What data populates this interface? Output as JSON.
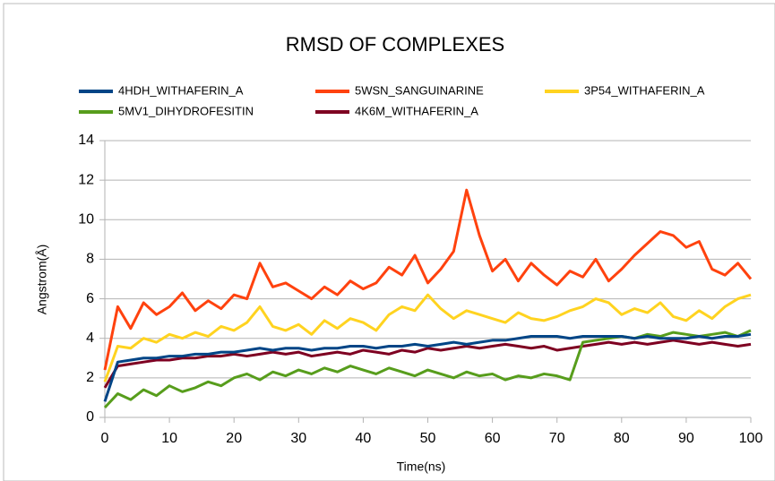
{
  "chart_data": {
    "type": "line",
    "title": "RMSD OF COMPLEXES",
    "x_label": "Time(ns)",
    "y_label": "Angstrom(Å)",
    "x": [
      0,
      2,
      4,
      6,
      8,
      10,
      12,
      14,
      16,
      18,
      20,
      22,
      24,
      26,
      28,
      30,
      32,
      34,
      36,
      38,
      40,
      42,
      44,
      46,
      48,
      50,
      52,
      54,
      56,
      58,
      60,
      62,
      64,
      66,
      68,
      70,
      72,
      74,
      76,
      78,
      80,
      82,
      84,
      86,
      88,
      90,
      92,
      94,
      96,
      98,
      100
    ],
    "series": [
      {
        "name": "4HDH_WITHAFERIN_A",
        "color": "#004586",
        "values": [
          0.8,
          2.8,
          2.9,
          3.0,
          3.0,
          3.1,
          3.1,
          3.2,
          3.2,
          3.3,
          3.3,
          3.4,
          3.5,
          3.4,
          3.5,
          3.5,
          3.4,
          3.5,
          3.5,
          3.6,
          3.6,
          3.5,
          3.6,
          3.6,
          3.7,
          3.6,
          3.7,
          3.8,
          3.7,
          3.8,
          3.9,
          3.9,
          4.0,
          4.1,
          4.1,
          4.1,
          4.0,
          4.1,
          4.1,
          4.1,
          4.1,
          4.0,
          4.1,
          4.0,
          4.0,
          4.0,
          4.1,
          4.0,
          4.1,
          4.1,
          4.2
        ]
      },
      {
        "name": "5WSN_SANGUINARINE",
        "color": "#ff420e",
        "values": [
          2.4,
          5.6,
          4.5,
          5.8,
          5.2,
          5.6,
          6.3,
          5.4,
          5.9,
          5.5,
          6.2,
          6.0,
          7.8,
          6.6,
          6.8,
          6.4,
          6.0,
          6.6,
          6.2,
          6.9,
          6.5,
          6.8,
          7.6,
          7.2,
          8.2,
          6.8,
          7.5,
          8.4,
          11.5,
          9.2,
          7.4,
          8.0,
          6.9,
          7.8,
          7.2,
          6.7,
          7.4,
          7.1,
          8.0,
          6.9,
          7.5,
          8.2,
          8.8,
          9.4,
          9.2,
          8.6,
          8.9,
          7.5,
          7.2,
          7.8,
          7.0
        ]
      },
      {
        "name": "3P54_WITHAFERIN_A",
        "color": "#ffd320",
        "values": [
          1.8,
          3.6,
          3.5,
          4.0,
          3.8,
          4.2,
          4.0,
          4.3,
          4.1,
          4.6,
          4.4,
          4.8,
          5.6,
          4.6,
          4.4,
          4.7,
          4.2,
          4.9,
          4.5,
          5.0,
          4.8,
          4.4,
          5.2,
          5.6,
          5.4,
          6.2,
          5.5,
          5.0,
          5.4,
          5.2,
          5.0,
          4.8,
          5.3,
          5.0,
          4.9,
          5.1,
          5.4,
          5.6,
          6.0,
          5.8,
          5.2,
          5.5,
          5.3,
          5.8,
          5.1,
          4.9,
          5.4,
          5.0,
          5.6,
          6.0,
          6.2
        ]
      },
      {
        "name": "5MV1_DIHYDROFESITIN",
        "color": "#579d1c",
        "values": [
          0.5,
          1.2,
          0.9,
          1.4,
          1.1,
          1.6,
          1.3,
          1.5,
          1.8,
          1.6,
          2.0,
          2.2,
          1.9,
          2.3,
          2.1,
          2.4,
          2.2,
          2.5,
          2.3,
          2.6,
          2.4,
          2.2,
          2.5,
          2.3,
          2.1,
          2.4,
          2.2,
          2.0,
          2.3,
          2.1,
          2.2,
          1.9,
          2.1,
          2.0,
          2.2,
          2.1,
          1.9,
          3.8,
          3.9,
          4.0,
          4.1,
          4.0,
          4.2,
          4.1,
          4.3,
          4.2,
          4.1,
          4.2,
          4.3,
          4.1,
          4.4
        ]
      },
      {
        "name": "4K6M_WITHAFERIN_A",
        "color": "#7e0021",
        "values": [
          1.5,
          2.6,
          2.7,
          2.8,
          2.9,
          2.9,
          3.0,
          3.0,
          3.1,
          3.1,
          3.2,
          3.1,
          3.2,
          3.3,
          3.2,
          3.3,
          3.1,
          3.2,
          3.3,
          3.2,
          3.4,
          3.3,
          3.2,
          3.4,
          3.3,
          3.5,
          3.4,
          3.5,
          3.6,
          3.5,
          3.6,
          3.7,
          3.6,
          3.5,
          3.6,
          3.4,
          3.5,
          3.6,
          3.7,
          3.8,
          3.7,
          3.8,
          3.7,
          3.8,
          3.9,
          3.8,
          3.7,
          3.8,
          3.7,
          3.6,
          3.7
        ]
      }
    ],
    "xlim": [
      0,
      100
    ],
    "xticks": [
      0,
      10,
      20,
      30,
      40,
      50,
      60,
      70,
      80,
      90,
      100
    ],
    "ylim": [
      0,
      14
    ],
    "yticks": [
      0,
      2,
      4,
      6,
      8,
      10,
      12,
      14
    ],
    "grid": true,
    "legend": "top"
  }
}
